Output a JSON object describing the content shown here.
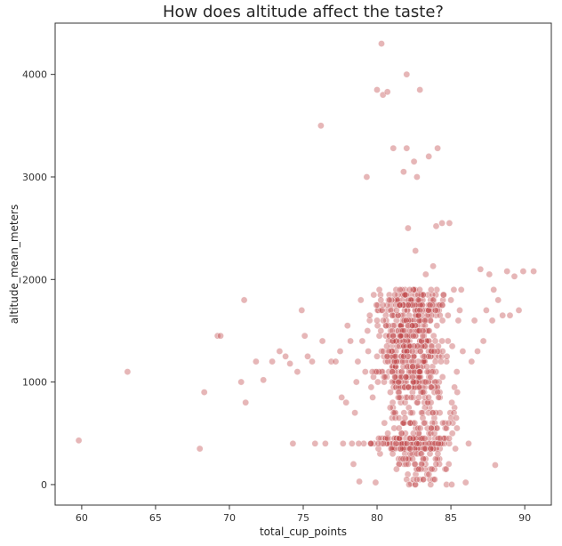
{
  "chart_data": {
    "type": "scatter",
    "title": "How does altitude affect the taste?",
    "xlabel": "total_cup_points",
    "ylabel": "altitude_mean_meters",
    "xlim": [
      58.2,
      91.8
    ],
    "ylim": [
      -200,
      4500
    ],
    "xticks": [
      60,
      65,
      70,
      75,
      80,
      85,
      90
    ],
    "yticks": [
      0,
      1000,
      2000,
      3000,
      4000
    ],
    "grid": false,
    "legend": "none",
    "point_color": "#c0494b",
    "point_opacity": 0.4,
    "points": [
      [
        59.8,
        430
      ],
      [
        63.1,
        1100
      ],
      [
        68.0,
        350
      ],
      [
        68.3,
        900
      ],
      [
        69.2,
        1450
      ],
      [
        69.4,
        1450
      ],
      [
        70.8,
        1000
      ],
      [
        71.0,
        1800
      ],
      [
        71.1,
        800
      ],
      [
        71.8,
        1200
      ],
      [
        72.3,
        1020
      ],
      [
        72.9,
        1200
      ],
      [
        73.4,
        1300
      ],
      [
        73.8,
        1250
      ],
      [
        74.1,
        1180
      ],
      [
        74.3,
        400
      ],
      [
        74.6,
        1100
      ],
      [
        74.9,
        1700
      ],
      [
        75.1,
        1450
      ],
      [
        75.3,
        1250
      ],
      [
        75.6,
        1200
      ],
      [
        75.8,
        400
      ],
      [
        76.2,
        3500
      ],
      [
        76.3,
        1400
      ],
      [
        76.5,
        400
      ],
      [
        76.9,
        1200
      ],
      [
        77.2,
        1200
      ],
      [
        77.5,
        1300
      ],
      [
        77.6,
        850
      ],
      [
        77.7,
        400
      ],
      [
        77.9,
        800
      ],
      [
        78.0,
        1550
      ],
      [
        78.2,
        1400
      ],
      [
        78.3,
        400
      ],
      [
        78.4,
        200
      ],
      [
        78.5,
        700
      ],
      [
        78.6,
        1000
      ],
      [
        78.7,
        1200
      ],
      [
        78.8,
        30
      ],
      [
        78.9,
        1800
      ],
      [
        79.0,
        1400
      ],
      [
        79.1,
        400
      ],
      [
        79.2,
        1100
      ],
      [
        79.3,
        3000
      ],
      [
        79.4,
        1300
      ],
      [
        79.5,
        1600
      ],
      [
        79.6,
        950
      ],
      [
        79.7,
        850
      ],
      [
        79.8,
        400
      ],
      [
        79.9,
        20
      ],
      [
        80.0,
        1250
      ],
      [
        80.0,
        3850
      ],
      [
        80.1,
        1700
      ],
      [
        80.2,
        300
      ],
      [
        80.3,
        4300
      ],
      [
        80.4,
        3800
      ],
      [
        80.5,
        600
      ],
      [
        80.6,
        1450
      ],
      [
        80.7,
        3830
      ],
      [
        80.8,
        1100
      ],
      [
        80.9,
        900
      ],
      [
        81.0,
        1350
      ],
      [
        81.1,
        3280
      ],
      [
        81.2,
        700
      ],
      [
        81.3,
        1800
      ],
      [
        81.4,
        400
      ],
      [
        81.5,
        200
      ],
      [
        81.6,
        1550
      ],
      [
        81.7,
        1050
      ],
      [
        81.8,
        3050
      ],
      [
        81.9,
        1200
      ],
      [
        82.0,
        4000
      ],
      [
        82.0,
        3280
      ],
      [
        82.1,
        2500
      ],
      [
        82.2,
        1400
      ],
      [
        82.3,
        10
      ],
      [
        82.4,
        900
      ],
      [
        82.5,
        3150
      ],
      [
        82.6,
        2280
      ],
      [
        82.7,
        3000
      ],
      [
        82.8,
        1650
      ],
      [
        82.9,
        3850
      ],
      [
        83.0,
        400
      ],
      [
        83.1,
        1200
      ],
      [
        83.2,
        800
      ],
      [
        83.3,
        2050
      ],
      [
        83.4,
        1500
      ],
      [
        83.5,
        3200
      ],
      [
        83.6,
        150
      ],
      [
        83.7,
        1300
      ],
      [
        83.8,
        2130
      ],
      [
        83.9,
        1700
      ],
      [
        84.0,
        2520
      ],
      [
        84.1,
        3280
      ],
      [
        84.2,
        1000
      ],
      [
        84.3,
        400
      ],
      [
        84.4,
        2550
      ],
      [
        84.5,
        1850
      ],
      [
        84.6,
        600
      ],
      [
        84.7,
        1200
      ],
      [
        84.8,
        1400
      ],
      [
        84.9,
        2550
      ],
      [
        85.0,
        1800
      ],
      [
        85.1,
        500
      ],
      [
        85.2,
        1900
      ],
      [
        85.3,
        350
      ],
      [
        85.4,
        1100
      ],
      [
        85.5,
        1600
      ],
      [
        85.6,
        1700
      ],
      [
        85.7,
        1900
      ],
      [
        85.8,
        1300
      ],
      [
        86.0,
        20
      ],
      [
        86.2,
        400
      ],
      [
        86.4,
        1200
      ],
      [
        86.6,
        1600
      ],
      [
        86.8,
        1300
      ],
      [
        87.0,
        2100
      ],
      [
        87.2,
        1400
      ],
      [
        87.4,
        1700
      ],
      [
        87.6,
        2050
      ],
      [
        87.8,
        1600
      ],
      [
        87.9,
        1900
      ],
      [
        88.0,
        190
      ],
      [
        88.2,
        1800
      ],
      [
        88.5,
        1650
      ],
      [
        88.8,
        2080
      ],
      [
        89.0,
        1650
      ],
      [
        89.3,
        2030
      ],
      [
        89.6,
        1700
      ],
      [
        89.9,
        2080
      ],
      [
        90.6,
        2080
      ]
    ],
    "clusters": [
      {
        "x_range": [
          79.0,
          85.5
        ],
        "y_range": [
          950,
          1900
        ],
        "count": 520
      },
      {
        "x_range": [
          78.0,
          86.0
        ],
        "y_range": [
          350,
          450
        ],
        "count": 120
      },
      {
        "x_range": [
          80.0,
          85.5
        ],
        "y_range": [
          0,
          350
        ],
        "count": 70
      },
      {
        "x_range": [
          79.5,
          86.5
        ],
        "y_range": [
          450,
          950
        ],
        "count": 110
      }
    ]
  }
}
